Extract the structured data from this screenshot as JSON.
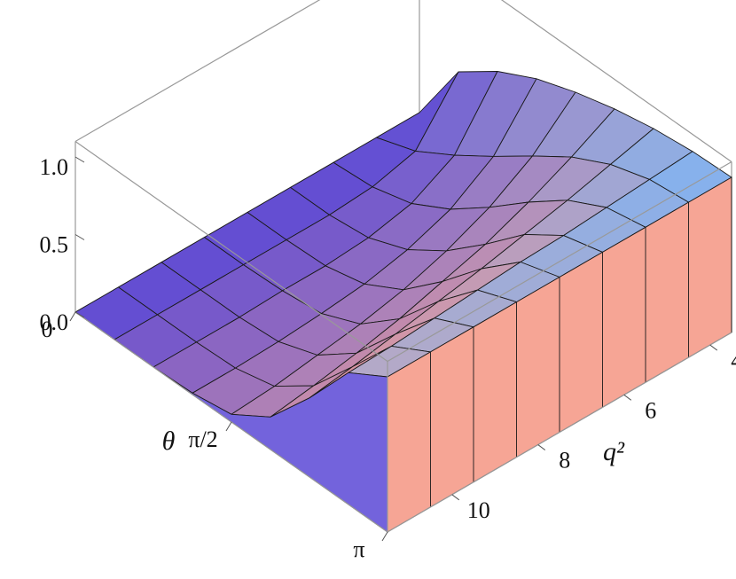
{
  "chart_data": {
    "type": "surface",
    "x_label": "θ",
    "y_label": "q²",
    "x": [
      0,
      0.3927,
      0.7854,
      1.1781,
      1.5708,
      1.9635,
      2.3562,
      2.7489,
      3.1416
    ],
    "y": [
      3.5,
      4.5,
      5.5,
      6.5,
      7.5,
      8.5,
      9.5,
      10.5,
      11.5
    ],
    "z": [
      [
        0,
        0.44,
        0.62,
        0.75,
        0.84,
        0.91,
        0.96,
        0.99,
        1
      ],
      [
        0,
        0.09,
        0.24,
        0.41,
        0.59,
        0.76,
        0.89,
        0.97,
        1
      ],
      [
        0,
        0.02,
        0.09,
        0.23,
        0.42,
        0.63,
        0.82,
        0.95,
        1
      ],
      [
        0,
        0,
        0.03,
        0.13,
        0.3,
        0.52,
        0.76,
        0.93,
        1
      ],
      [
        0,
        0,
        0.01,
        0.07,
        0.21,
        0.44,
        0.7,
        0.92,
        1
      ],
      [
        0,
        0,
        0.01,
        0.04,
        0.15,
        0.36,
        0.65,
        0.9,
        1
      ],
      [
        0,
        0,
        0,
        0.02,
        0.11,
        0.3,
        0.6,
        0.88,
        1
      ],
      [
        0,
        0,
        0,
        0.01,
        0.07,
        0.25,
        0.55,
        0.86,
        1
      ],
      [
        0,
        0,
        0,
        0.01,
        0.05,
        0.21,
        0.51,
        0.85,
        1
      ]
    ],
    "xlim": [
      0,
      3.1416
    ],
    "ylim": [
      3.5,
      11.5
    ],
    "zlim": [
      0,
      1.1
    ],
    "xticks": [
      {
        "value": 0,
        "label": "0"
      },
      {
        "value": 1.5708,
        "label": "π/2"
      },
      {
        "value": 3.1416,
        "label": "π"
      }
    ],
    "yticks": [
      4,
      6,
      8,
      10
    ],
    "zticks": [
      {
        "value": 0,
        "label": "0.0"
      },
      {
        "value": 0.5,
        "label": "0.5"
      },
      {
        "value": 1,
        "label": "1.0"
      }
    ],
    "colors": {
      "low": "#5a48d6",
      "high": "#f6a595",
      "top": "#7fb2f2"
    }
  }
}
